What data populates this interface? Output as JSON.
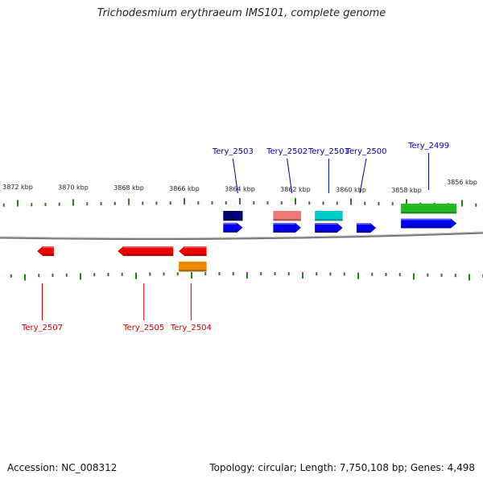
{
  "title": "Trichodesmium erythraeum IMS101, complete genome",
  "footer": {
    "accession": "Accession: NC_008312",
    "topology": "Topology: circular; Length: 7,750,108 bp; Genes: 4,498"
  },
  "colors": {
    "forward_label": "#0000aa",
    "reverse_label": "#cc0000",
    "backbone": "#7a7a7a",
    "tick": "#2b7a1f"
  },
  "ticks": [
    {
      "kbp": 3872,
      "label": "3872 kbp"
    },
    {
      "kbp": 3870,
      "label": "3870 kbp"
    },
    {
      "kbp": 3868,
      "label": "3868 kbp"
    },
    {
      "kbp": 3866,
      "label": "3866 kbp"
    },
    {
      "kbp": 3864,
      "label": "3864 kbp"
    },
    {
      "kbp": 3862,
      "label": "3862 kbp"
    },
    {
      "kbp": 3860,
      "label": "3860 kbp"
    },
    {
      "kbp": 3858,
      "label": "3858 kbp"
    },
    {
      "kbp": 3856,
      "label": "3856 kbp"
    }
  ],
  "genes": [
    {
      "label": "Tery_2503",
      "strand": "+",
      "start_kbp": 3864.6,
      "end_kbp": 3863.9,
      "colors": [
        "#0000ee",
        "#000077"
      ]
    },
    {
      "label": "Tery_2502",
      "strand": "+",
      "start_kbp": 3862.8,
      "end_kbp": 3861.8,
      "colors": [
        "#0000ee",
        "#ee7777"
      ]
    },
    {
      "label": "Tery_2501",
      "strand": "+",
      "start_kbp": 3861.3,
      "end_kbp": 3860.3,
      "colors": [
        "#0000ee",
        "#00cccc"
      ]
    },
    {
      "label": "Tery_2500",
      "strand": "+",
      "start_kbp": 3859.8,
      "end_kbp": 3859.1,
      "colors": [
        "#0000ee"
      ]
    },
    {
      "label": "Tery_2499",
      "strand": "+",
      "start_kbp": 3858.2,
      "end_kbp": 3856.2,
      "colors": [
        "#0000ee",
        "#22bb22"
      ]
    },
    {
      "label": "Tery_2507",
      "strand": "-",
      "start_kbp": 3871.3,
      "end_kbp": 3870.7,
      "colors": [
        "#ee0000"
      ]
    },
    {
      "label": "Tery_2505",
      "strand": "-",
      "start_kbp": 3868.4,
      "end_kbp": 3866.4,
      "colors": [
        "#ee0000"
      ]
    },
    {
      "label": "Tery_2504",
      "strand": "-",
      "start_kbp": 3866.2,
      "end_kbp": 3865.2,
      "colors": [
        "#ee0000",
        "#ee8800"
      ]
    }
  ]
}
